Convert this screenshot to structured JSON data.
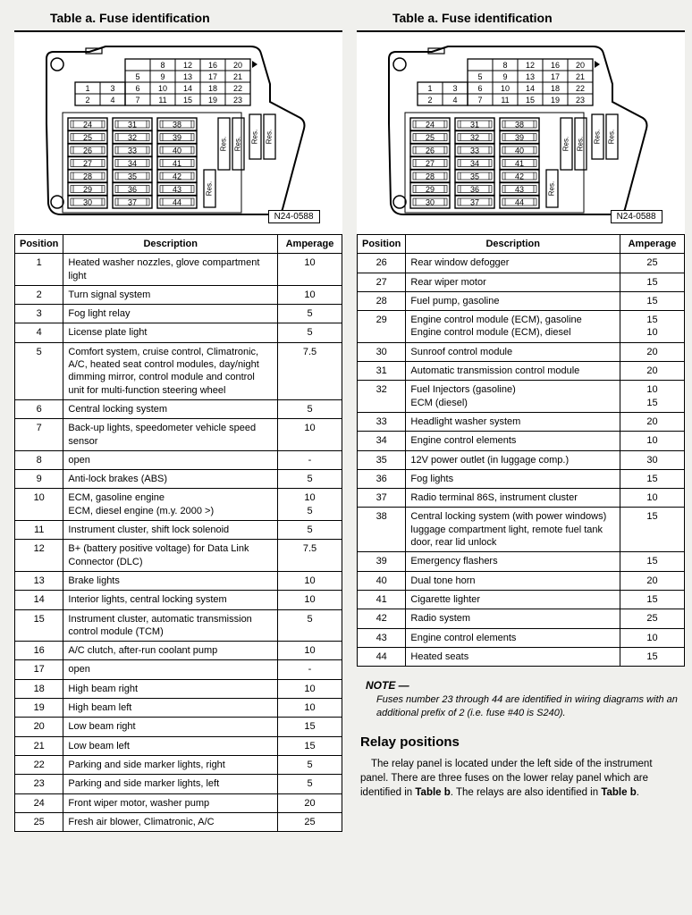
{
  "title": "Table a.  Fuse identification",
  "diagram_label": "N24-0588",
  "diagram": {
    "top_grid_rows": [
      [
        "",
        "",
        "8",
        "12",
        "16",
        "20"
      ],
      [
        "",
        "",
        "5",
        "9",
        "13",
        "17",
        "21"
      ],
      [
        "1",
        "3",
        "6",
        "10",
        "14",
        "18",
        "22"
      ],
      [
        "2",
        "4",
        "7",
        "11",
        "15",
        "19",
        "23"
      ]
    ],
    "bottom_grid_cols": [
      [
        "24",
        "25",
        "26",
        "27",
        "28",
        "29",
        "30"
      ],
      [
        "31",
        "32",
        "33",
        "34",
        "35",
        "36",
        "37"
      ],
      [
        "38",
        "39",
        "40",
        "41",
        "42",
        "43",
        "44"
      ]
    ],
    "res_labels": [
      "Res.",
      "Res.",
      "Res.",
      "Res.",
      "Res."
    ]
  },
  "columns": [
    "Position",
    "Description",
    "Amperage"
  ],
  "left_rows": [
    {
      "pos": "1",
      "desc": "Heated washer nozzles, glove compartment light",
      "amp": "10"
    },
    {
      "pos": "2",
      "desc": "Turn signal system",
      "amp": "10"
    },
    {
      "pos": "3",
      "desc": "Fog light relay",
      "amp": "5"
    },
    {
      "pos": "4",
      "desc": "License plate light",
      "amp": "5"
    },
    {
      "pos": "5",
      "desc": "Comfort system, cruise control, Climatronic, A/C, heated seat control modules, day/night dimming mirror, control module and control unit for multi-function steering wheel",
      "amp": "7.5"
    },
    {
      "pos": "6",
      "desc": "Central locking system",
      "amp": "5"
    },
    {
      "pos": "7",
      "desc": "Back-up lights, speedometer vehicle speed sensor",
      "amp": "10"
    },
    {
      "pos": "8",
      "desc": "open",
      "amp": "-"
    },
    {
      "pos": "9",
      "desc": "Anti-lock brakes (ABS)",
      "amp": "5"
    },
    {
      "pos": "10",
      "desc": "ECM, gasoline engine\nECM, diesel engine (m.y. 2000 >)",
      "amp": "10\n5"
    },
    {
      "pos": "11",
      "desc": "Instrument cluster, shift lock solenoid",
      "amp": "5"
    },
    {
      "pos": "12",
      "desc": "B+ (battery positive voltage) for Data Link Connector (DLC)",
      "amp": "7.5"
    },
    {
      "pos": "13",
      "desc": "Brake lights",
      "amp": "10"
    },
    {
      "pos": "14",
      "desc": "Interior lights, central locking system",
      "amp": "10"
    },
    {
      "pos": "15",
      "desc": "Instrument cluster, automatic transmission control module (TCM)",
      "amp": "5"
    },
    {
      "pos": "16",
      "desc": "A/C clutch, after-run coolant pump",
      "amp": "10"
    },
    {
      "pos": "17",
      "desc": "open",
      "amp": "-"
    },
    {
      "pos": "18",
      "desc": "High beam right",
      "amp": "10"
    },
    {
      "pos": "19",
      "desc": "High beam left",
      "amp": "10"
    },
    {
      "pos": "20",
      "desc": "Low beam right",
      "amp": "15"
    },
    {
      "pos": "21",
      "desc": "Low beam left",
      "amp": "15"
    },
    {
      "pos": "22",
      "desc": "Parking and side marker lights, right",
      "amp": "5"
    },
    {
      "pos": "23",
      "desc": "Parking and side marker lights, left",
      "amp": "5"
    },
    {
      "pos": "24",
      "desc": "Front wiper motor, washer pump",
      "amp": "20"
    },
    {
      "pos": "25",
      "desc": "Fresh air blower, Climatronic, A/C",
      "amp": "25"
    }
  ],
  "right_rows": [
    {
      "pos": "26",
      "desc": "Rear window defogger",
      "amp": "25"
    },
    {
      "pos": "27",
      "desc": "Rear wiper motor",
      "amp": "15"
    },
    {
      "pos": "28",
      "desc": "Fuel pump, gasoline",
      "amp": "15"
    },
    {
      "pos": "29",
      "desc": "Engine control module (ECM), gasoline\nEngine control module (ECM), diesel",
      "amp": "15\n10"
    },
    {
      "pos": "30",
      "desc": "Sunroof control module",
      "amp": "20"
    },
    {
      "pos": "31",
      "desc": "Automatic transmission control module",
      "amp": "20"
    },
    {
      "pos": "32",
      "desc": "Fuel Injectors (gasoline)\nECM (diesel)",
      "amp": "10\n15"
    },
    {
      "pos": "33",
      "desc": "Headlight washer system",
      "amp": "20"
    },
    {
      "pos": "34",
      "desc": "Engine control elements",
      "amp": "10"
    },
    {
      "pos": "35",
      "desc": "12V power outlet (in luggage comp.)",
      "amp": "30"
    },
    {
      "pos": "36",
      "desc": "Fog lights",
      "amp": "15"
    },
    {
      "pos": "37",
      "desc": "Radio terminal 86S, instrument cluster",
      "amp": "10"
    },
    {
      "pos": "38",
      "desc": "Central locking system (with power windows) luggage compartment light, remote fuel tank door, rear lid unlock",
      "amp": "15"
    },
    {
      "pos": "39",
      "desc": "Emergency flashers",
      "amp": "15"
    },
    {
      "pos": "40",
      "desc": "Dual tone horn",
      "amp": "20"
    },
    {
      "pos": "41",
      "desc": "Cigarette lighter",
      "amp": "15"
    },
    {
      "pos": "42",
      "desc": "Radio system",
      "amp": "25"
    },
    {
      "pos": "43",
      "desc": "Engine control elements",
      "amp": "10"
    },
    {
      "pos": "44",
      "desc": "Heated seats",
      "amp": "15"
    }
  ],
  "note_head": "NOTE —",
  "note_body": "Fuses number 23 through 44 are identified in wiring diagrams with an additional prefix of 2 (i.e. fuse #40 is S240).",
  "relay_head": "Relay positions",
  "relay_body_pre": "The relay panel is located under the left side of the instrument panel. There are three fuses on the lower relay panel which are identified in ",
  "relay_body_bold1": "Table b",
  "relay_body_mid": ". The relays are also identified in ",
  "relay_body_bold2": "Table b",
  "relay_body_post": "."
}
